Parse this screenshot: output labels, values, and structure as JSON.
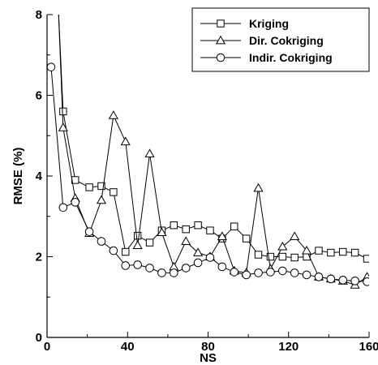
{
  "chart_data": {
    "type": "line",
    "xlabel": "NS",
    "ylabel": "RMSE (%)",
    "xlim": [
      0,
      160
    ],
    "ylim": [
      0,
      8
    ],
    "xticks": [
      0,
      40,
      80,
      120,
      160
    ],
    "yticks": [
      0,
      2,
      4,
      6,
      8
    ],
    "grid": false,
    "legend_position": "top-right",
    "series": [
      {
        "name": "Kriging",
        "marker": "square",
        "x": [
          8,
          14,
          21,
          27,
          33,
          39,
          45,
          51,
          57,
          63,
          69,
          75,
          81,
          87,
          93,
          99,
          105,
          111,
          117,
          123,
          129,
          135,
          141,
          147,
          153,
          159
        ],
        "y": [
          5.6,
          3.9,
          3.72,
          3.75,
          3.6,
          2.12,
          2.52,
          2.35,
          2.65,
          2.78,
          2.68,
          2.78,
          2.65,
          2.45,
          2.75,
          2.45,
          2.05,
          2.0,
          2.0,
          1.98,
          2.0,
          2.15,
          2.1,
          2.12,
          2.1,
          1.95
        ]
      },
      {
        "name": "Dir. Cokriging",
        "marker": "triangle",
        "x": [
          8,
          14,
          21,
          27,
          33,
          39,
          45,
          51,
          57,
          63,
          69,
          75,
          81,
          87,
          93,
          99,
          105,
          111,
          117,
          123,
          129,
          135,
          141,
          147,
          153,
          159
        ],
        "y": [
          5.2,
          3.45,
          2.58,
          3.4,
          5.5,
          4.85,
          2.28,
          4.55,
          2.6,
          1.75,
          2.38,
          2.1,
          2.0,
          2.5,
          1.65,
          1.6,
          3.7,
          1.7,
          2.25,
          2.5,
          2.15,
          1.5,
          1.45,
          1.4,
          1.3,
          1.5
        ]
      },
      {
        "name": "Indir. Cokriging",
        "marker": "circle",
        "x": [
          2,
          8,
          14,
          21,
          27,
          33,
          39,
          45,
          51,
          57,
          63,
          69,
          75,
          81,
          87,
          93,
          99,
          105,
          111,
          117,
          123,
          129,
          135,
          141,
          147,
          153,
          159
        ],
        "y": [
          6.7,
          3.22,
          3.35,
          2.62,
          2.38,
          2.15,
          1.78,
          1.8,
          1.72,
          1.6,
          1.6,
          1.72,
          1.85,
          1.98,
          1.75,
          1.62,
          1.55,
          1.6,
          1.62,
          1.65,
          1.6,
          1.55,
          1.5,
          1.45,
          1.42,
          1.4,
          1.38
        ]
      }
    ]
  }
}
